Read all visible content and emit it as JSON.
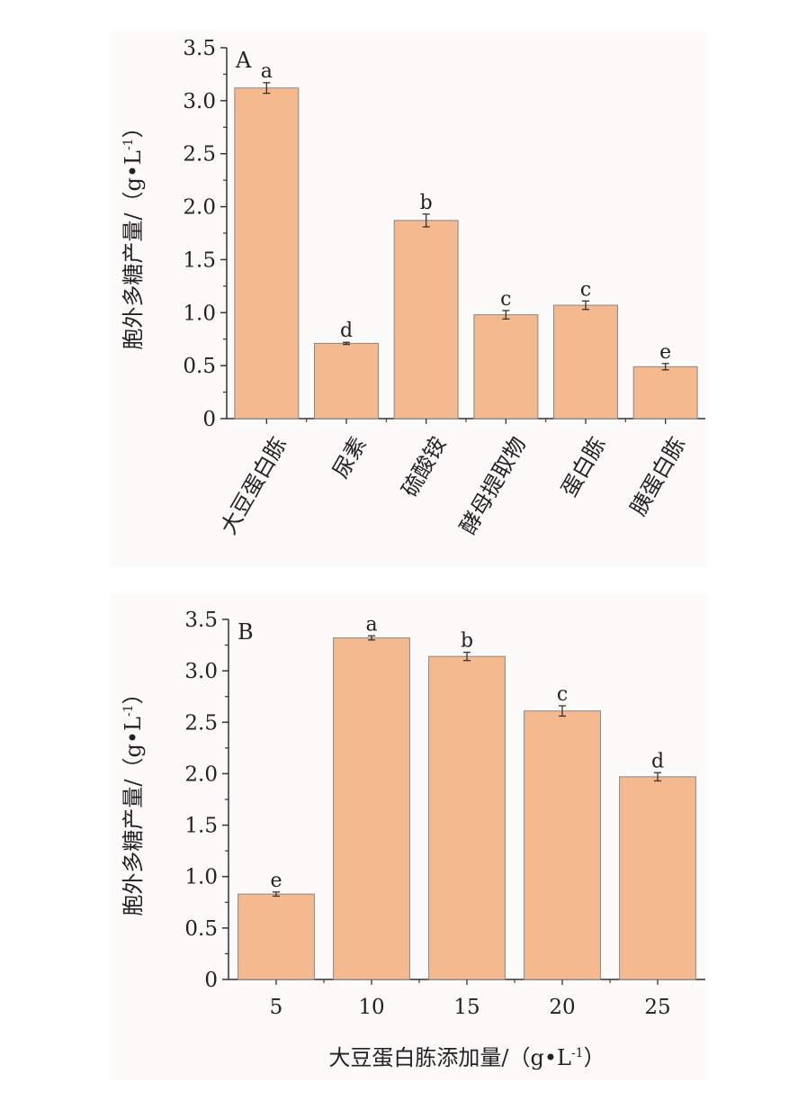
{
  "chart_data": [
    {
      "type": "bar",
      "panel_label": "A",
      "ylabel": "胞外多糖产量/（g•L-1）",
      "xlabel": "",
      "categories": [
        "大豆蛋白胨",
        "尿素",
        "硫酸铵",
        "酵母提取物",
        "蛋白胨",
        "胰蛋白胨"
      ],
      "values": [
        3.12,
        0.71,
        1.87,
        0.98,
        1.07,
        0.49
      ],
      "errors": [
        0.05,
        0.01,
        0.06,
        0.04,
        0.04,
        0.03
      ],
      "significance": [
        "a",
        "d",
        "b",
        "c",
        "c",
        "e"
      ],
      "ylim": [
        0,
        3.5
      ],
      "yticks": [
        "0",
        "0.5",
        "1.0",
        "1.5",
        "2.0",
        "2.5",
        "3.0",
        "3.5"
      ],
      "bar_color": "#f4b98e",
      "bar_edge": "#888888",
      "grid": false
    },
    {
      "type": "bar",
      "panel_label": "B",
      "ylabel": "胞外多糖产量/（g•L-1）",
      "xlabel": "大豆蛋白胨添加量/（g•L-1）",
      "categories": [
        "5",
        "10",
        "15",
        "20",
        "25"
      ],
      "values": [
        0.83,
        3.32,
        3.14,
        2.61,
        1.97
      ],
      "errors": [
        0.02,
        0.02,
        0.04,
        0.05,
        0.04
      ],
      "significance": [
        "e",
        "a",
        "b",
        "c",
        "d"
      ],
      "ylim": [
        0,
        3.5
      ],
      "yticks": [
        "0",
        "0.5",
        "1.0",
        "1.5",
        "2.0",
        "2.5",
        "3.0",
        "3.5"
      ],
      "bar_color": "#f4b98e",
      "bar_edge": "#888888",
      "grid": false
    }
  ]
}
